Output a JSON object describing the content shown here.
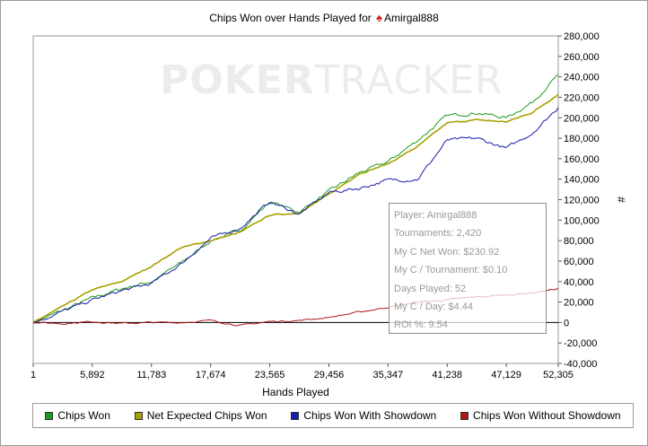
{
  "title": {
    "prefix": "Chips Won over Hands Played for",
    "player": "Amirgal888"
  },
  "watermark": {
    "bold": "POKER",
    "thin": "TRACKER"
  },
  "stats": [
    "Player: Amirgal888",
    "Tournaments: 2,420",
    "My C Net Won: $230.92",
    "My C / Tournament: $0.10",
    "Days Played: 52",
    "My C / Day: $4.44",
    "ROI %: 9.54"
  ],
  "legend": [
    {
      "label": "Chips Won",
      "color": "#1a9a1a"
    },
    {
      "label": "Net Expected Chips Won",
      "color": "#a8a000"
    },
    {
      "label": "Chips Won With Showdown",
      "color": "#1a1aaa"
    },
    {
      "label": "Chips Won Without Showdown",
      "color": "#b01818"
    }
  ],
  "chart_data": {
    "type": "line",
    "xlabel": "Hands Played",
    "ylabel": "#",
    "xlim": [
      1,
      52305
    ],
    "ylim": [
      -40000,
      280000
    ],
    "x_ticks": [
      1,
      5892,
      11783,
      17674,
      23565,
      29456,
      35347,
      41238,
      47129,
      52305
    ],
    "x_tick_labels": [
      "1",
      "5,892",
      "11,783",
      "17,674",
      "23,565",
      "29,456",
      "35,347",
      "41,238",
      "47,129",
      "52,305"
    ],
    "y_ticks": [
      -40000,
      -20000,
      0,
      20000,
      40000,
      60000,
      80000,
      100000,
      120000,
      140000,
      160000,
      180000,
      200000,
      220000,
      240000,
      260000,
      280000
    ],
    "y_tick_labels": [
      "-40,000",
      "-20,000",
      "0",
      "20,000",
      "40,000",
      "60,000",
      "80,000",
      "100,000",
      "120,000",
      "140,000",
      "160,000",
      "180,000",
      "200,000",
      "220,000",
      "240,000",
      "260,000",
      "280,000"
    ],
    "grid": false,
    "legend_position": "bottom",
    "x": [
      1,
      3000,
      5892,
      8800,
      11783,
      14700,
      17674,
      20600,
      23565,
      26500,
      29456,
      32400,
      35347,
      38300,
      41238,
      44200,
      47129,
      49700,
      52305
    ],
    "series": [
      {
        "name": "Chips Won",
        "color": "#1a9a1a",
        "values": [
          0,
          12000,
          24000,
          33000,
          40000,
          58000,
          80000,
          90000,
          118000,
          108000,
          128000,
          146000,
          157000,
          178000,
          202000,
          205000,
          200000,
          215000,
          242000
        ]
      },
      {
        "name": "Net Expected Chips Won",
        "color": "#a8a000",
        "values": [
          0,
          16000,
          32000,
          40000,
          55000,
          73000,
          80000,
          88000,
          105000,
          107000,
          125000,
          145000,
          155000,
          172000,
          195000,
          198000,
          196000,
          205000,
          223000
        ]
      },
      {
        "name": "Chips Won With Showdown",
        "color": "#1a1aaa",
        "values": [
          0,
          11000,
          22000,
          31000,
          38000,
          57000,
          82000,
          92000,
          118000,
          106000,
          127000,
          131000,
          139000,
          140000,
          178000,
          180000,
          170000,
          185000,
          210000
        ]
      },
      {
        "name": "Chips Won Without Showdown",
        "color": "#b01818",
        "values": [
          0,
          -1000,
          1000,
          -1000,
          0,
          0,
          2000,
          -3000,
          1000,
          2000,
          5000,
          10000,
          15000,
          20000,
          22000,
          25000,
          27000,
          29000,
          33000
        ]
      }
    ]
  }
}
